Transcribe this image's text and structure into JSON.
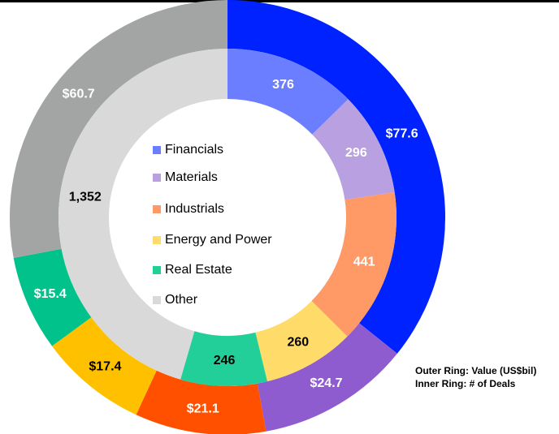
{
  "chart_data": {
    "type": "donut",
    "categories": [
      "Financials",
      "Materials",
      "Industrials",
      "Energy and Power",
      "Real Estate",
      "Other"
    ],
    "series": [
      {
        "name": "Outer Ring: Value (US$bil)",
        "ring": "outer",
        "colors": [
          "#0022ff",
          "#8e5ccf",
          "#ff5000",
          "#ffc000",
          "#00c28a",
          "#a2a5a3"
        ],
        "label_colors": [
          "#ffffff",
          "#ffffff",
          "#ffffff",
          "#000000",
          "#ffffff",
          "#ffffff"
        ],
        "values": [
          77.6,
          24.7,
          21.1,
          17.4,
          15.4,
          60.7
        ],
        "value_labels": [
          "$77.6",
          "$24.7",
          "$21.1",
          "$17.4",
          "$15.4",
          "$60.7"
        ]
      },
      {
        "name": "Inner Ring: # of Deals",
        "ring": "inner",
        "colors": [
          "#6b7eff",
          "#b9a0e0",
          "#ff9966",
          "#ffdc6a",
          "#22cf98",
          "#d9d9d9"
        ],
        "label_colors": [
          "#ffffff",
          "#ffffff",
          "#ffffff",
          "#000000",
          "#000000",
          "#000000"
        ],
        "values": [
          376,
          296,
          441,
          260,
          246,
          1352
        ],
        "value_labels": [
          "376",
          "296",
          "441",
          "260",
          "246",
          "1,352"
        ]
      }
    ]
  }
}
